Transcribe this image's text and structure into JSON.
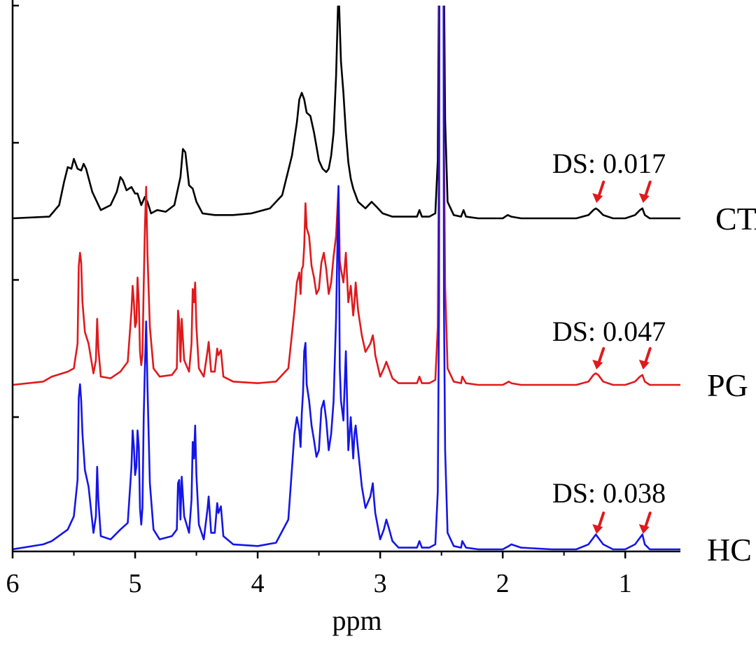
{
  "chart_data": {
    "type": "line",
    "title": "",
    "xlabel": "ppm",
    "ylabel": "",
    "x_reversed": true,
    "xlim": [
      6.0,
      0.55
    ],
    "x_ticks": [
      6,
      5,
      4,
      3,
      2,
      1
    ],
    "x_tick_labels": [
      "6",
      "5",
      "4",
      "3",
      "2",
      "1"
    ],
    "grid": false,
    "legend": "none",
    "series": [
      {
        "name": "CTA",
        "color": "#000000",
        "baseline": 0.0,
        "x": [
          6.0,
          5.7,
          5.62,
          5.58,
          5.55,
          5.52,
          5.5,
          5.47,
          5.44,
          5.42,
          5.4,
          5.35,
          5.28,
          5.2,
          5.15,
          5.12,
          5.1,
          5.07,
          5.03,
          5.0,
          4.98,
          4.95,
          4.92,
          4.9,
          4.87,
          4.82,
          4.75,
          4.68,
          4.63,
          4.61,
          4.59,
          4.56,
          4.53,
          4.5,
          4.45,
          4.35,
          4.2,
          4.05,
          3.9,
          3.8,
          3.72,
          3.68,
          3.66,
          3.64,
          3.62,
          3.6,
          3.57,
          3.54,
          3.5,
          3.47,
          3.44,
          3.42,
          3.4,
          3.38,
          3.36,
          3.34,
          3.32,
          3.3,
          3.28,
          3.26,
          3.24,
          3.22,
          3.18,
          3.12,
          3.07,
          3.03,
          2.98,
          2.9,
          2.8,
          2.7,
          2.68,
          2.66,
          2.6,
          2.55,
          2.53,
          2.52,
          2.515,
          2.5,
          2.485,
          2.48,
          2.47,
          2.45,
          2.4,
          2.34,
          2.32,
          2.3,
          2.2,
          2.0,
          1.96,
          1.93,
          1.85,
          1.6,
          1.4,
          1.3,
          1.26,
          1.24,
          1.22,
          1.18,
          1.1,
          1.0,
          0.92,
          0.88,
          0.86,
          0.84,
          0.8,
          0.7,
          0.55
        ],
        "y": [
          0.0,
          0.01,
          0.08,
          0.22,
          0.31,
          0.3,
          0.36,
          0.3,
          0.29,
          0.33,
          0.3,
          0.16,
          0.05,
          0.08,
          0.16,
          0.25,
          0.23,
          0.17,
          0.19,
          0.15,
          0.15,
          0.08,
          0.13,
          0.1,
          0.03,
          0.05,
          0.04,
          0.08,
          0.25,
          0.42,
          0.4,
          0.2,
          0.18,
          0.1,
          0.03,
          0.02,
          0.02,
          0.03,
          0.06,
          0.14,
          0.38,
          0.58,
          0.72,
          0.76,
          0.72,
          0.64,
          0.62,
          0.52,
          0.35,
          0.3,
          0.28,
          0.3,
          0.38,
          0.52,
          0.86,
          1.4,
          0.95,
          0.76,
          0.52,
          0.34,
          0.24,
          0.18,
          0.1,
          0.06,
          0.1,
          0.07,
          0.03,
          0.01,
          0.01,
          0.01,
          0.05,
          0.01,
          0.01,
          0.03,
          0.35,
          1.5,
          4.5,
          6.0,
          4.5,
          1.5,
          0.6,
          0.1,
          0.02,
          0.01,
          0.05,
          0.01,
          0.0,
          0.0,
          0.02,
          0.01,
          0.0,
          0.0,
          0.0,
          0.02,
          0.05,
          0.06,
          0.05,
          0.02,
          0.0,
          0.0,
          0.02,
          0.05,
          0.06,
          0.02,
          0.0,
          0.0,
          0.0
        ]
      },
      {
        "name": "PG",
        "color": "#e0191c",
        "baseline": 0.0,
        "x": [
          6.0,
          5.75,
          5.68,
          5.55,
          5.5,
          5.47,
          5.46,
          5.45,
          5.44,
          5.43,
          5.41,
          5.38,
          5.34,
          5.32,
          5.31,
          5.3,
          5.28,
          5.2,
          5.12,
          5.06,
          5.03,
          5.02,
          5.01,
          5.0,
          4.99,
          4.98,
          4.97,
          4.96,
          4.95,
          4.94,
          4.93,
          4.92,
          4.91,
          4.9,
          4.88,
          4.85,
          4.8,
          4.7,
          4.66,
          4.65,
          4.64,
          4.63,
          4.62,
          4.6,
          4.56,
          4.54,
          4.53,
          4.52,
          4.51,
          4.5,
          4.48,
          4.44,
          4.41,
          4.4,
          4.38,
          4.35,
          4.33,
          4.32,
          4.3,
          4.28,
          4.2,
          4.0,
          3.85,
          3.75,
          3.7,
          3.68,
          3.66,
          3.65,
          3.64,
          3.63,
          3.62,
          3.61,
          3.6,
          3.58,
          3.56,
          3.54,
          3.52,
          3.5,
          3.48,
          3.46,
          3.44,
          3.42,
          3.4,
          3.38,
          3.36,
          3.34,
          3.33,
          3.32,
          3.3,
          3.28,
          3.26,
          3.24,
          3.22,
          3.21,
          3.2,
          3.18,
          3.15,
          3.12,
          3.08,
          3.06,
          3.05,
          3.04,
          3.0,
          2.97,
          2.95,
          2.93,
          2.9,
          2.85,
          2.75,
          2.7,
          2.68,
          2.66,
          2.6,
          2.55,
          2.53,
          2.52,
          2.515,
          2.5,
          2.485,
          2.48,
          2.47,
          2.45,
          2.4,
          2.34,
          2.33,
          2.3,
          2.2,
          2.0,
          1.95,
          1.93,
          1.85,
          1.6,
          1.4,
          1.3,
          1.26,
          1.24,
          1.22,
          1.18,
          1.1,
          1.0,
          0.92,
          0.88,
          0.86,
          0.84,
          0.8,
          0.7,
          0.55
        ],
        "y": [
          0.0,
          0.02,
          0.05,
          0.08,
          0.1,
          0.25,
          0.72,
          0.8,
          0.74,
          0.5,
          0.32,
          0.25,
          0.07,
          0.15,
          0.4,
          0.22,
          0.05,
          0.04,
          0.08,
          0.14,
          0.45,
          0.6,
          0.5,
          0.35,
          0.38,
          0.65,
          0.5,
          0.2,
          0.12,
          0.18,
          0.6,
          0.95,
          1.2,
          0.8,
          0.35,
          0.1,
          0.05,
          0.06,
          0.1,
          0.45,
          0.38,
          0.14,
          0.4,
          0.15,
          0.08,
          0.25,
          0.58,
          0.5,
          0.62,
          0.35,
          0.1,
          0.05,
          0.2,
          0.26,
          0.08,
          0.08,
          0.22,
          0.18,
          0.21,
          0.05,
          0.02,
          0.01,
          0.02,
          0.1,
          0.45,
          0.62,
          0.68,
          0.55,
          0.7,
          0.72,
          0.84,
          1.1,
          0.95,
          0.9,
          0.72,
          0.65,
          0.55,
          0.58,
          0.74,
          0.8,
          0.7,
          0.55,
          0.62,
          0.78,
          0.9,
          1.2,
          0.75,
          0.7,
          0.62,
          0.8,
          0.5,
          0.6,
          0.42,
          0.5,
          0.62,
          0.45,
          0.3,
          0.2,
          0.25,
          0.3,
          0.25,
          0.18,
          0.05,
          0.1,
          0.14,
          0.1,
          0.04,
          0.01,
          0.01,
          0.01,
          0.05,
          0.01,
          0.01,
          0.03,
          0.35,
          1.5,
          4.5,
          6.0,
          4.5,
          1.5,
          0.6,
          0.1,
          0.02,
          0.01,
          0.05,
          0.01,
          0.0,
          0.0,
          0.02,
          0.01,
          0.0,
          0.0,
          0.0,
          0.02,
          0.06,
          0.07,
          0.06,
          0.02,
          0.0,
          0.0,
          0.02,
          0.05,
          0.06,
          0.02,
          0.0,
          0.0,
          0.0
        ]
      },
      {
        "name": "HC",
        "color": "#1515e8",
        "baseline": 0.0,
        "x": [
          6.0,
          5.75,
          5.68,
          5.55,
          5.5,
          5.47,
          5.46,
          5.45,
          5.44,
          5.43,
          5.41,
          5.38,
          5.34,
          5.32,
          5.31,
          5.3,
          5.28,
          5.2,
          5.12,
          5.06,
          5.03,
          5.02,
          5.01,
          5.0,
          4.99,
          4.98,
          4.97,
          4.96,
          4.95,
          4.94,
          4.93,
          4.92,
          4.91,
          4.9,
          4.88,
          4.85,
          4.8,
          4.7,
          4.66,
          4.65,
          4.64,
          4.63,
          4.62,
          4.6,
          4.56,
          4.54,
          4.53,
          4.52,
          4.51,
          4.5,
          4.48,
          4.44,
          4.41,
          4.4,
          4.38,
          4.35,
          4.33,
          4.32,
          4.3,
          4.28,
          4.2,
          4.0,
          3.85,
          3.75,
          3.7,
          3.68,
          3.66,
          3.65,
          3.64,
          3.63,
          3.62,
          3.61,
          3.6,
          3.58,
          3.56,
          3.54,
          3.52,
          3.5,
          3.48,
          3.46,
          3.44,
          3.42,
          3.4,
          3.38,
          3.36,
          3.34,
          3.33,
          3.32,
          3.3,
          3.28,
          3.26,
          3.24,
          3.22,
          3.21,
          3.2,
          3.18,
          3.15,
          3.12,
          3.08,
          3.06,
          3.05,
          3.04,
          3.0,
          2.97,
          2.95,
          2.93,
          2.9,
          2.85,
          2.75,
          2.7,
          2.68,
          2.66,
          2.6,
          2.55,
          2.53,
          2.52,
          2.515,
          2.5,
          2.485,
          2.48,
          2.47,
          2.45,
          2.4,
          2.34,
          2.33,
          2.3,
          2.2,
          2.0,
          1.95,
          1.93,
          1.85,
          1.6,
          1.4,
          1.3,
          1.26,
          1.24,
          1.22,
          1.18,
          1.1,
          1.0,
          0.92,
          0.88,
          0.86,
          0.84,
          0.8,
          0.7,
          0.55
        ],
        "y": [
          0.0,
          0.03,
          0.05,
          0.12,
          0.2,
          0.42,
          0.92,
          1.0,
          0.9,
          0.7,
          0.48,
          0.38,
          0.1,
          0.2,
          0.5,
          0.3,
          0.08,
          0.06,
          0.12,
          0.16,
          0.5,
          0.72,
          0.62,
          0.45,
          0.5,
          0.72,
          0.62,
          0.25,
          0.15,
          0.25,
          0.8,
          1.1,
          1.38,
          1.0,
          0.4,
          0.12,
          0.06,
          0.08,
          0.12,
          0.4,
          0.42,
          0.18,
          0.44,
          0.2,
          0.1,
          0.3,
          0.65,
          0.55,
          0.75,
          0.45,
          0.15,
          0.06,
          0.24,
          0.32,
          0.1,
          0.1,
          0.28,
          0.22,
          0.26,
          0.08,
          0.03,
          0.02,
          0.04,
          0.18,
          0.7,
          0.8,
          0.72,
          0.62,
          0.82,
          0.95,
          1.2,
          1.25,
          1.0,
          0.9,
          0.75,
          0.66,
          0.56,
          0.6,
          0.85,
          0.9,
          0.78,
          0.6,
          0.7,
          0.9,
          1.4,
          2.2,
          1.1,
          0.9,
          0.78,
          1.2,
          0.6,
          0.8,
          0.55,
          0.7,
          0.75,
          0.6,
          0.38,
          0.25,
          0.32,
          0.4,
          0.3,
          0.22,
          0.06,
          0.12,
          0.18,
          0.13,
          0.05,
          0.01,
          0.01,
          0.01,
          0.05,
          0.01,
          0.01,
          0.03,
          0.35,
          1.5,
          4.5,
          6.0,
          4.5,
          1.5,
          0.6,
          0.1,
          0.02,
          0.01,
          0.05,
          0.01,
          0.0,
          0.0,
          0.02,
          0.03,
          0.01,
          0.0,
          0.0,
          0.03,
          0.07,
          0.09,
          0.07,
          0.03,
          0.0,
          0.0,
          0.03,
          0.07,
          0.09,
          0.03,
          0.0,
          0.0,
          0.0
        ]
      }
    ],
    "annotations": [
      {
        "series": "CTA",
        "text": "DS: 0.017",
        "arrows_at": [
          1.24,
          0.86
        ],
        "arrow_color": "#e0191c"
      },
      {
        "series": "PG",
        "text": "DS: 0.047",
        "arrows_at": [
          1.24,
          0.86
        ],
        "arrow_color": "#e0191c"
      },
      {
        "series": "HC",
        "text": "DS: 0.038",
        "arrows_at": [
          1.24,
          0.86
        ],
        "arrow_color": "#e0191c"
      }
    ]
  }
}
